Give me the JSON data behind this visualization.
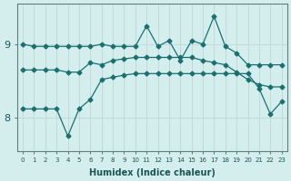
{
  "xlabel": "Humidex (Indice chaleur)",
  "background_color": "#d4eeee",
  "grid_color": "#c0dada",
  "line_color": "#1a7070",
  "x_values": [
    0,
    1,
    2,
    3,
    4,
    5,
    6,
    7,
    8,
    9,
    10,
    11,
    12,
    13,
    14,
    15,
    16,
    17,
    18,
    19,
    20,
    21,
    22,
    23
  ],
  "line1_y": [
    9.0,
    8.97,
    8.97,
    8.97,
    8.97,
    8.97,
    8.97,
    9.0,
    8.97,
    8.97,
    8.97,
    9.25,
    8.97,
    9.05,
    8.78,
    9.05,
    9.0,
    9.38,
    8.97,
    8.88,
    8.72,
    8.72,
    8.72,
    8.72
  ],
  "line2_y": [
    8.65,
    8.65,
    8.65,
    8.65,
    8.62,
    8.62,
    8.75,
    8.72,
    8.78,
    8.8,
    8.82,
    8.82,
    8.82,
    8.82,
    8.82,
    8.82,
    8.78,
    8.75,
    8.72,
    8.62,
    8.52,
    8.45,
    8.42,
    8.42
  ],
  "line3_y": [
    8.12,
    8.12,
    8.12,
    8.12,
    7.75,
    8.12,
    8.25,
    8.52,
    8.55,
    8.58,
    8.6,
    8.6,
    8.6,
    8.6,
    8.6,
    8.6,
    8.6,
    8.6,
    8.6,
    8.6,
    8.6,
    8.4,
    8.05,
    8.22
  ],
  "ylim": [
    7.55,
    9.55
  ],
  "xlim": [
    -0.5,
    23.5
  ],
  "yticks": [
    8,
    9
  ],
  "xticks": [
    0,
    1,
    2,
    3,
    4,
    5,
    6,
    7,
    8,
    9,
    10,
    11,
    12,
    13,
    14,
    15,
    16,
    17,
    18,
    19,
    20,
    21,
    22,
    23
  ]
}
